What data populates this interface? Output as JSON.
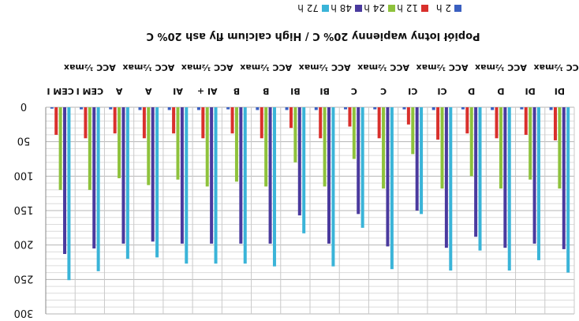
{
  "chart_data": {
    "type": "bar",
    "title": "Popiół lotny wapienny 20% C / High calcium fly ash 20% C",
    "orientation": "mirrored-vertical",
    "legend_position": "top-right",
    "ylim": [
      0,
      300
    ],
    "y_ticks": [
      "0",
      "50",
      "100",
      "150",
      "200",
      "250",
      "300"
    ],
    "grid": true,
    "categories": [
      "CEM I",
      "CEM I ACC ½max",
      "A",
      "A ACC ½max",
      "AI",
      "AI+ ACC ½max",
      "B",
      "B ACC ½max",
      "BI",
      "BI ACC ½max",
      "C",
      "C ACC ½max",
      "CI",
      "CI ACC ½max",
      "D",
      "D ACC ½max",
      "DI",
      "DI ACC ½max"
    ],
    "category_labels": [
      {
        "top": "",
        "bottom": "CEM I"
      },
      {
        "top": "ACC ½max",
        "bottom": "CEM I"
      },
      {
        "top": "",
        "bottom": "A"
      },
      {
        "top": "ACC ½max",
        "bottom": "A"
      },
      {
        "top": "",
        "bottom": "AI"
      },
      {
        "top": "ACC ½max",
        "bottom": "AI +"
      },
      {
        "top": "",
        "bottom": "B"
      },
      {
        "top": "ACC ½max",
        "bottom": "B"
      },
      {
        "top": "",
        "bottom": "BI"
      },
      {
        "top": "ACC ½max",
        "bottom": "BI"
      },
      {
        "top": "",
        "bottom": "C"
      },
      {
        "top": "ACC ½max",
        "bottom": "C"
      },
      {
        "top": "",
        "bottom": "CI"
      },
      {
        "top": "ACC ½max",
        "bottom": "CI"
      },
      {
        "top": "",
        "bottom": "D"
      },
      {
        "top": "ACC ½max",
        "bottom": "D"
      },
      {
        "top": "",
        "bottom": "DI"
      },
      {
        "top": "ACC ½max",
        "bottom": "DI"
      }
    ],
    "series": [
      {
        "name": "2 h",
        "color": "#3a5fc0",
        "values": [
          2,
          3,
          3,
          4,
          4,
          4,
          3,
          4,
          4,
          4,
          3,
          3,
          3,
          4,
          3,
          4,
          3,
          4
        ]
      },
      {
        "name": "12 h",
        "color": "#d9302c",
        "values": [
          40,
          45,
          38,
          45,
          38,
          45,
          38,
          45,
          30,
          45,
          28,
          45,
          25,
          47,
          38,
          45,
          40,
          48
        ]
      },
      {
        "name": "24 h",
        "color": "#8ec23c",
        "values": [
          120,
          120,
          103,
          113,
          105,
          115,
          108,
          115,
          80,
          115,
          75,
          118,
          68,
          118,
          100,
          118,
          105,
          118
        ]
      },
      {
        "name": "48 h",
        "color": "#4a3a9e",
        "values": [
          213,
          205,
          198,
          195,
          198,
          198,
          198,
          198,
          157,
          198,
          155,
          202,
          150,
          204,
          188,
          204,
          198,
          206
        ]
      },
      {
        "name": "72 h",
        "color": "#3ab4d8",
        "values": [
          251,
          238,
          220,
          218,
          227,
          227,
          227,
          231,
          183,
          231,
          175,
          235,
          155,
          237,
          208,
          237,
          222,
          240
        ]
      }
    ]
  }
}
